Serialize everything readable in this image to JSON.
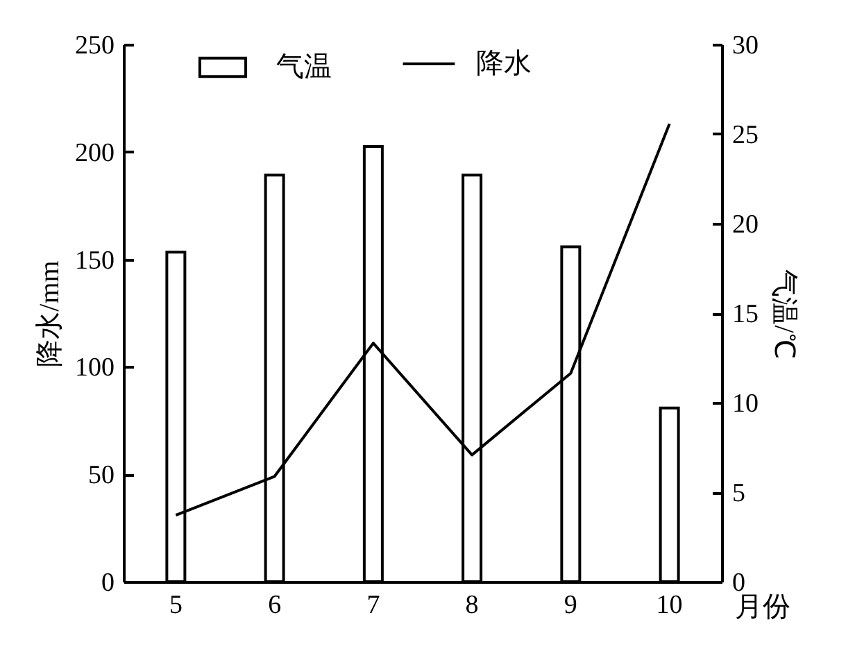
{
  "chart_data": {
    "type": "bar",
    "categories": [
      "5",
      "6",
      "7",
      "8",
      "9",
      "10"
    ],
    "xlabel": "月份",
    "ylabel": "降水/mm",
    "y2label": "气温/℃",
    "series": [
      {
        "name": "气温",
        "axis": "y2",
        "color": "#ffffff",
        "values": [
          18.4,
          22.7,
          24.3,
          22.7,
          18.7,
          9.7
        ]
      },
      {
        "name": "降水",
        "type": "line",
        "color": "#000000",
        "values": [
          31,
          49,
          111,
          59,
          97,
          213
        ]
      }
    ],
    "ylim": [
      0,
      250
    ],
    "yticks": [
      0,
      50,
      100,
      150,
      200,
      250
    ],
    "y2lim": [
      0,
      30
    ],
    "y2ticks": [
      0,
      5,
      10,
      15,
      20,
      25,
      30
    ],
    "grid": false,
    "legend": "top",
    "marker": "none",
    "line_style": "solid"
  }
}
